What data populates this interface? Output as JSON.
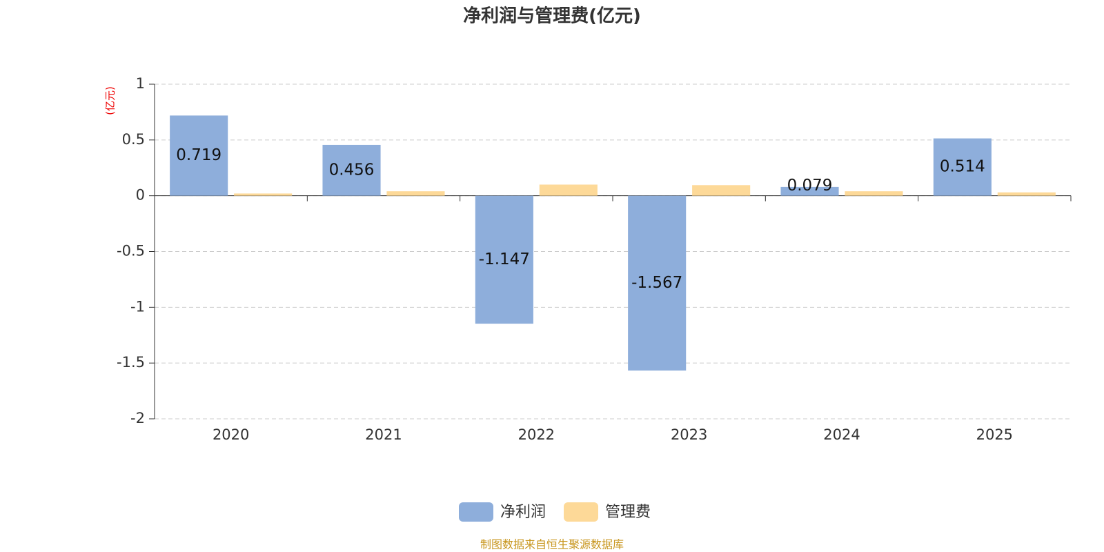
{
  "chart_data": {
    "type": "bar",
    "title": "净利润与管理费(亿元)",
    "y_axis_label": "(亿元)",
    "categories": [
      "2020",
      "2021",
      "2022",
      "2023",
      "2024",
      "2025"
    ],
    "series": [
      {
        "name": "净利润",
        "color": "#8eaedb",
        "values": [
          0.719,
          0.456,
          -1.147,
          -1.567,
          0.079,
          0.514
        ]
      },
      {
        "name": "管理费",
        "color": "#fdd998",
        "values": [
          0.02,
          0.04,
          0.1,
          0.095,
          0.04,
          0.03
        ]
      }
    ],
    "ylim": [
      -2,
      1
    ],
    "yticks": [
      1,
      0.5,
      0,
      -0.5,
      -1,
      -1.5,
      -2
    ],
    "grid": true,
    "source": "制图数据来自恒生聚源数据库"
  }
}
